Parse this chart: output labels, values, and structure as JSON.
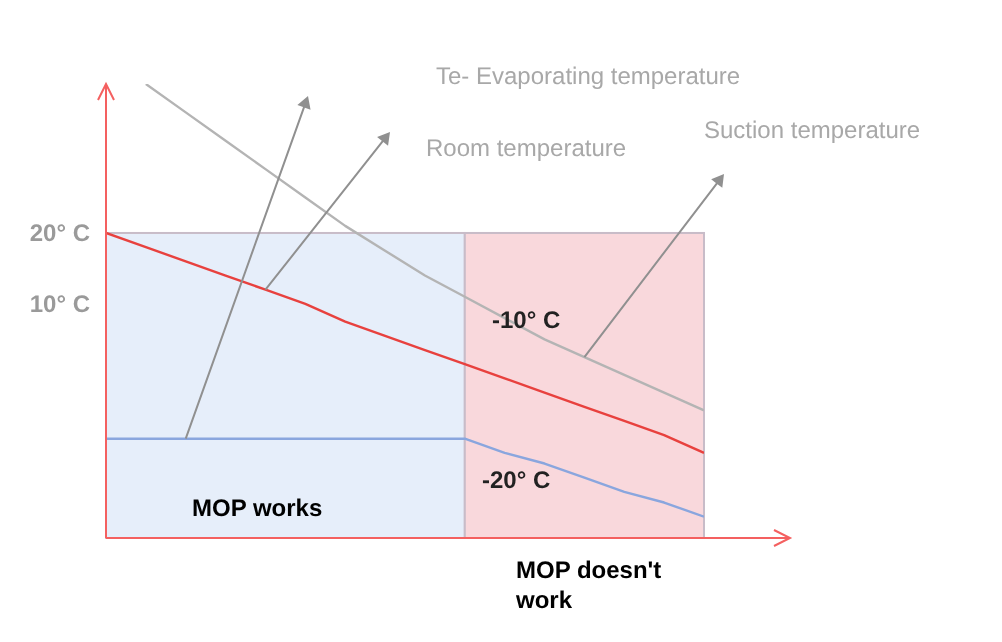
{
  "chart_data": {
    "type": "line",
    "tick_labels": "y",
    "ylim": [
      -23,
      41
    ],
    "categories": [
      null,
      null,
      null,
      null,
      null,
      null,
      null,
      null,
      null,
      null,
      null,
      null,
      null,
      null,
      null,
      null
    ],
    "yticks": [
      {
        "value": 10,
        "label": "10° C"
      },
      {
        "value": 20,
        "label": "20° C"
      }
    ],
    "series": [
      {
        "color": "#8aa6de",
        "values": [
          -9,
          -9,
          -9,
          -9,
          -9,
          -9,
          -9,
          -9,
          -9,
          -9,
          -11,
          -12.5,
          -14.5,
          -16.5,
          -18,
          -20
        ]
      },
      {
        "color": "#e8413e",
        "values": [
          20,
          18,
          16,
          14,
          12,
          10,
          7.5,
          5.5,
          3.5,
          1.5,
          -0.5,
          -2.5,
          -4.5,
          -6.5,
          -8.5,
          -11
        ]
      },
      {
        "color": "#b4b4b4",
        "values": [
          null,
          41,
          37,
          33,
          29,
          25,
          21,
          17.5,
          14,
          11,
          8,
          5,
          2.5,
          0,
          -2.5,
          -5
        ]
      }
    ],
    "annotations": [
      "Te- Evaporating temperature",
      "Room temperature",
      "Suction temperature",
      "-10° C",
      "-20° C",
      "MOP works",
      "MOP doesn't work"
    ]
  }
}
